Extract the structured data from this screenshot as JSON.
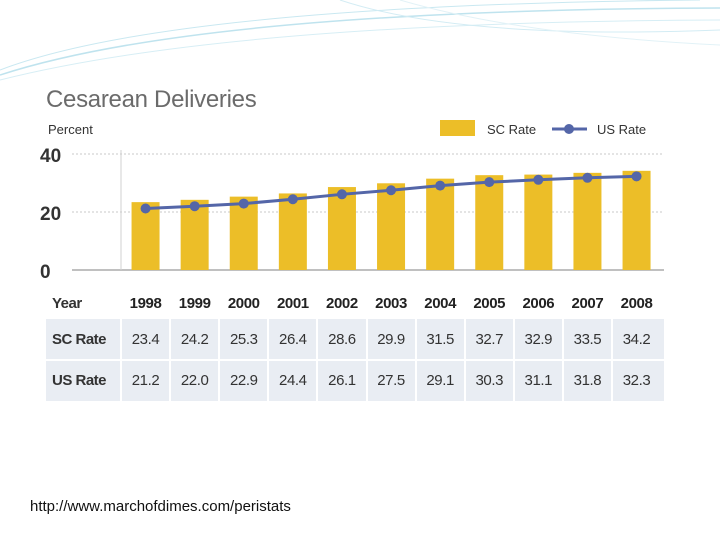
{
  "chart_data": {
    "type": "bar",
    "title": "Cesarean Deliveries",
    "ylabel": "Percent",
    "xlabel": "Year",
    "ylim": [
      0,
      40
    ],
    "yticks": [
      0,
      20,
      40
    ],
    "grid": true,
    "legend_position": "top-right",
    "categories": [
      "1998",
      "1999",
      "2000",
      "2001",
      "2002",
      "2003",
      "2004",
      "2005",
      "2006",
      "2007",
      "2008"
    ],
    "series": [
      {
        "name": "SC Rate",
        "kind": "bar",
        "color": "#ecbe28",
        "values": [
          23.4,
          24.2,
          25.3,
          26.4,
          28.6,
          29.9,
          31.5,
          32.7,
          32.9,
          33.5,
          34.2
        ]
      },
      {
        "name": "US Rate",
        "kind": "line",
        "color": "#5466a8",
        "values": [
          21.2,
          22.0,
          22.9,
          24.4,
          26.1,
          27.5,
          29.1,
          30.3,
          31.1,
          31.8,
          32.3
        ]
      }
    ],
    "table": {
      "header_label": "Year",
      "rows": [
        {
          "label": "SC Rate",
          "values": [
            "23.4",
            "24.2",
            "25.3",
            "26.4",
            "28.6",
            "29.9",
            "31.5",
            "32.7",
            "32.9",
            "33.5",
            "34.2"
          ]
        },
        {
          "label": "US Rate",
          "values": [
            "21.2",
            "22.0",
            "22.9",
            "24.4",
            "26.1",
            "27.5",
            "29.1",
            "30.3",
            "31.1",
            "31.8",
            "32.3"
          ]
        }
      ]
    }
  },
  "source": "http://www.marchofdimes.com/peristats"
}
